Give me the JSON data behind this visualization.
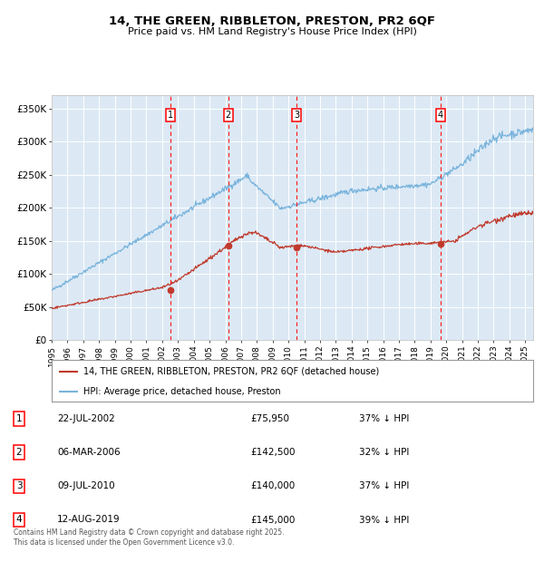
{
  "title": "14, THE GREEN, RIBBLETON, PRESTON, PR2 6QF",
  "subtitle": "Price paid vs. HM Land Registry's House Price Index (HPI)",
  "plot_bg_color": "#dce9f5",
  "red_line_label": "14, THE GREEN, RIBBLETON, PRESTON, PR2 6QF (detached house)",
  "blue_line_label": "HPI: Average price, detached house, Preston",
  "footer": "Contains HM Land Registry data © Crown copyright and database right 2025.\nThis data is licensed under the Open Government Licence v3.0.",
  "sale_markers": [
    {
      "num": 1,
      "date": "22-JUL-2002",
      "price": 75950,
      "pct": "37%",
      "x_year": 2002.55
    },
    {
      "num": 2,
      "date": "06-MAR-2006",
      "price": 142500,
      "pct": "32%",
      "x_year": 2006.18
    },
    {
      "num": 3,
      "date": "09-JUL-2010",
      "price": 140000,
      "pct": "37%",
      "x_year": 2010.52
    },
    {
      "num": 4,
      "date": "12-AUG-2019",
      "price": 145000,
      "pct": "39%",
      "x_year": 2019.62
    }
  ],
  "ylim": [
    0,
    370000
  ],
  "xlim_start": 1995.0,
  "xlim_end": 2025.5,
  "yticks": [
    0,
    50000,
    100000,
    150000,
    200000,
    250000,
    300000,
    350000
  ],
  "ytick_labels": [
    "£0",
    "£50K",
    "£100K",
    "£150K",
    "£200K",
    "£250K",
    "£300K",
    "£350K"
  ],
  "xtick_years": [
    1995,
    1996,
    1997,
    1998,
    1999,
    2000,
    2001,
    2002,
    2003,
    2004,
    2005,
    2006,
    2007,
    2008,
    2009,
    2010,
    2011,
    2012,
    2013,
    2014,
    2015,
    2016,
    2017,
    2018,
    2019,
    2020,
    2021,
    2022,
    2023,
    2024,
    2025
  ]
}
